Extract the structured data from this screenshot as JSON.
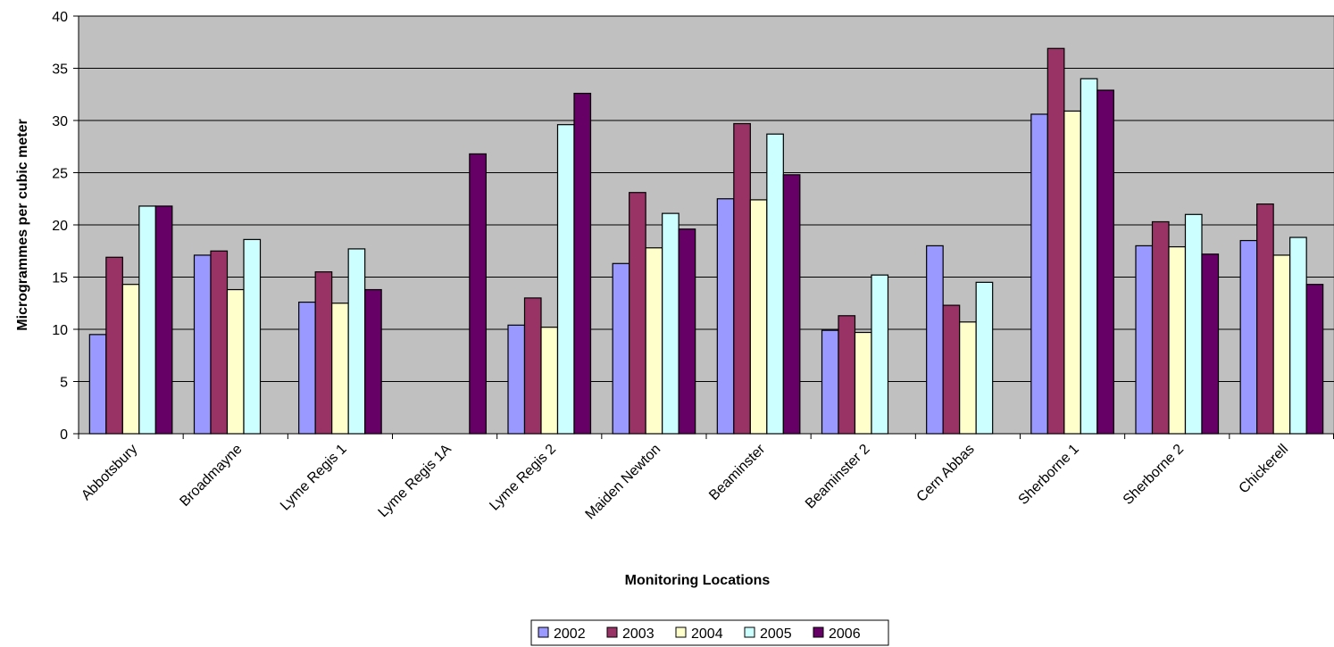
{
  "chart_data": {
    "type": "bar",
    "title": "",
    "xlabel": "Monitoring Locations",
    "ylabel": "Microgrammes per cubic meter",
    "ylim": [
      0,
      40
    ],
    "yticks": [
      0,
      5,
      10,
      15,
      20,
      25,
      30,
      35,
      40
    ],
    "grid": true,
    "legend_position": "bottom",
    "categories": [
      "Abbotsbury",
      "Broadmayne",
      "Lyme Regis 1",
      "Lyme Regis 1A",
      "Lyme Regis 2",
      "Maiden Newton",
      "Beaminster",
      "Beaminster 2",
      "Cern Abbas",
      "Sherborne 1",
      "Sherborne 2",
      "Chickerell"
    ],
    "series": [
      {
        "name": "2002",
        "color": "#9999ff",
        "values": [
          9.5,
          17.1,
          12.6,
          null,
          10.4,
          16.3,
          22.5,
          9.9,
          18.0,
          30.6,
          18.0,
          18.5
        ]
      },
      {
        "name": "2003",
        "color": "#993366",
        "values": [
          16.9,
          17.5,
          15.5,
          null,
          13.0,
          23.1,
          29.7,
          11.3,
          12.3,
          36.9,
          20.3,
          22.0
        ]
      },
      {
        "name": "2004",
        "color": "#ffffcc",
        "values": [
          14.3,
          13.8,
          12.5,
          null,
          10.2,
          17.8,
          22.4,
          9.7,
          10.7,
          30.9,
          17.9,
          17.1
        ]
      },
      {
        "name": "2005",
        "color": "#ccffff",
        "values": [
          21.8,
          18.6,
          17.7,
          null,
          29.6,
          21.1,
          28.7,
          15.2,
          14.5,
          34.0,
          21.0,
          18.8
        ]
      },
      {
        "name": "2006",
        "color": "#660066",
        "values": [
          21.8,
          null,
          13.8,
          26.8,
          32.6,
          19.6,
          24.8,
          null,
          null,
          32.9,
          17.2,
          14.3
        ]
      }
    ]
  }
}
